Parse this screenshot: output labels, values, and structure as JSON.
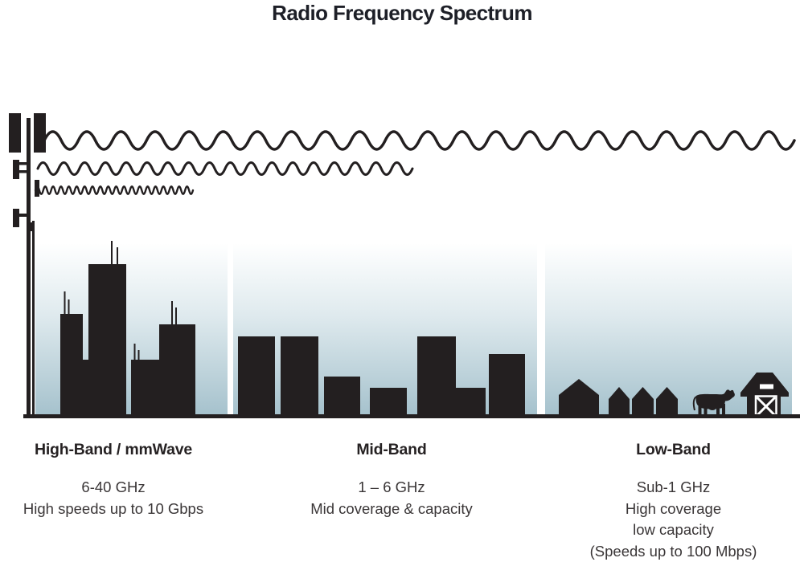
{
  "title": "Radio Frequency Spectrum",
  "theme": {
    "ink": "#231f20",
    "title-color": "#1d1f27",
    "heading-color": "#262223",
    "body-color": "#3a3637",
    "sky-top": "#ffffff",
    "sky-mid": "#dfeaee",
    "sky-bottom": "#a6c2cd",
    "page-bg": "#ffffff"
  },
  "bands": [
    {
      "name": "High-Band / mmWave",
      "frequency": "6-40 GHz",
      "lines": [
        "High speeds up to 10 Gbps"
      ],
      "icon": "city-skyline-icon",
      "wave": "short-wavelength-wave"
    },
    {
      "name": "Mid-Band",
      "frequency": "1 – 6 GHz",
      "lines": [
        "Mid coverage & capacity"
      ],
      "icon": "town-buildings-icon",
      "wave": "medium-wavelength-wave"
    },
    {
      "name": "Low-Band",
      "frequency": "Sub-1 GHz",
      "lines": [
        "High coverage",
        "low capacity",
        "(Speeds up to 100 Mbps)"
      ],
      "icon": "farm-houses-cow-barn-icon",
      "wave": "long-wavelength-wave"
    }
  ]
}
